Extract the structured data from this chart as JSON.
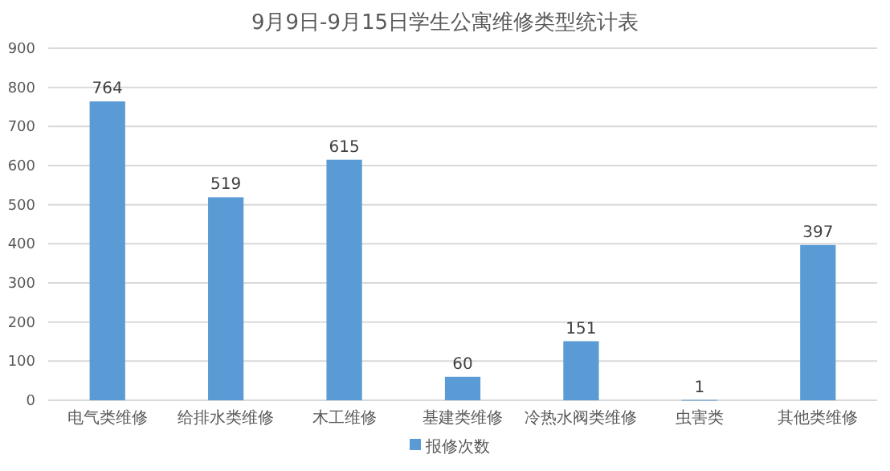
{
  "chart_data": {
    "type": "bar",
    "title": "9月9日-9月15日学生公寓维修类型统计表",
    "categories": [
      "电气类维修",
      "给排水类维修",
      "木工维修",
      "基建类维修",
      "冷热水阀类维修",
      "虫害类",
      "其他类维修"
    ],
    "series": [
      {
        "name": "报修次数",
        "color": "#5b9bd5",
        "values": [
          764,
          519,
          615,
          60,
          151,
          1,
          397
        ]
      }
    ],
    "ylim": [
      0,
      900
    ],
    "yticks": [
      0,
      100,
      200,
      300,
      400,
      500,
      600,
      700,
      800,
      900
    ],
    "grid": "y",
    "legend": "bottom",
    "data_labels": true
  }
}
